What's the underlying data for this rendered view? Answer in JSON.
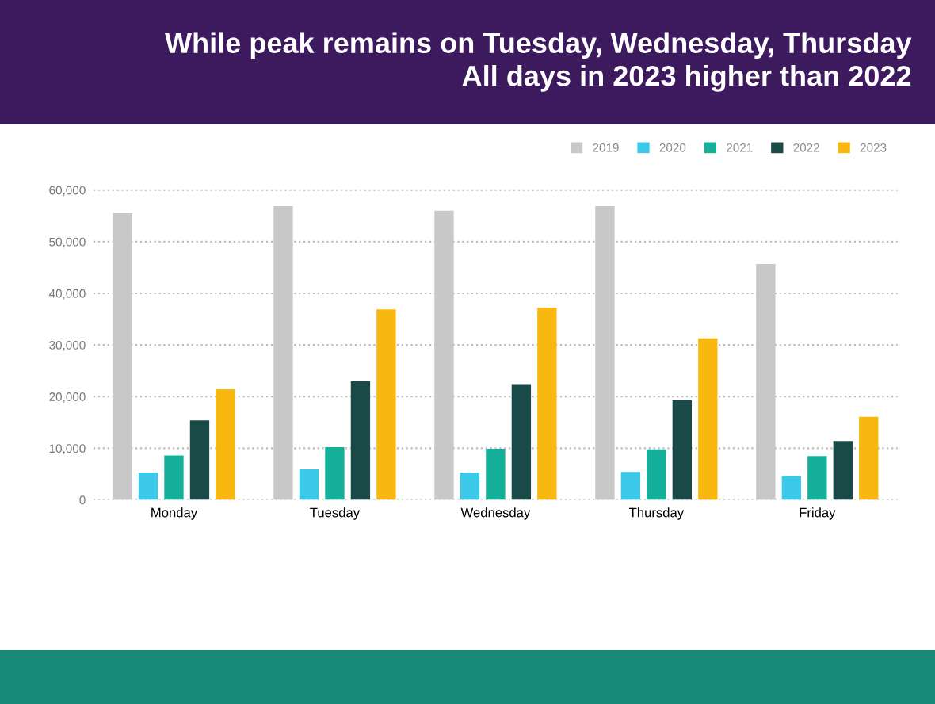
{
  "chart_data": {
    "type": "bar",
    "title": "While peak remains on Tuesday, Wednesday, Thursday\nAll days in 2023 higher than 2022",
    "categories": [
      "Monday",
      "Tuesday",
      "Wednesday",
      "Thursday",
      "Friday"
    ],
    "series": [
      {
        "name": "2019",
        "color": "#c8c8c8",
        "values": [
          55500,
          56900,
          56000,
          56900,
          45700
        ]
      },
      {
        "name": "2020",
        "color": "#3cc8e8",
        "values": [
          5300,
          5900,
          5300,
          5400,
          4600
        ]
      },
      {
        "name": "2021",
        "color": "#14b09a",
        "values": [
          8600,
          10200,
          9900,
          9800,
          8500
        ]
      },
      {
        "name": "2022",
        "color": "#1a4a48",
        "values": [
          15400,
          23000,
          22400,
          19300,
          11400
        ]
      },
      {
        "name": "2023",
        "color": "#f8b810",
        "values": [
          21400,
          36900,
          37200,
          31300,
          16100
        ]
      }
    ],
    "ylim": [
      0,
      60000
    ],
    "yticks": [
      {
        "value": 0,
        "label": "0"
      },
      {
        "value": 10000,
        "label": "10,000"
      },
      {
        "value": 20000,
        "label": "20,000"
      },
      {
        "value": 30000,
        "label": "30,000"
      },
      {
        "value": 40000,
        "label": "40,000"
      },
      {
        "value": 50000,
        "label": "50,000"
      },
      {
        "value": 60000,
        "label": "60,000"
      }
    ],
    "grid": "y",
    "line_style": "dotted",
    "legend": "top right"
  }
}
